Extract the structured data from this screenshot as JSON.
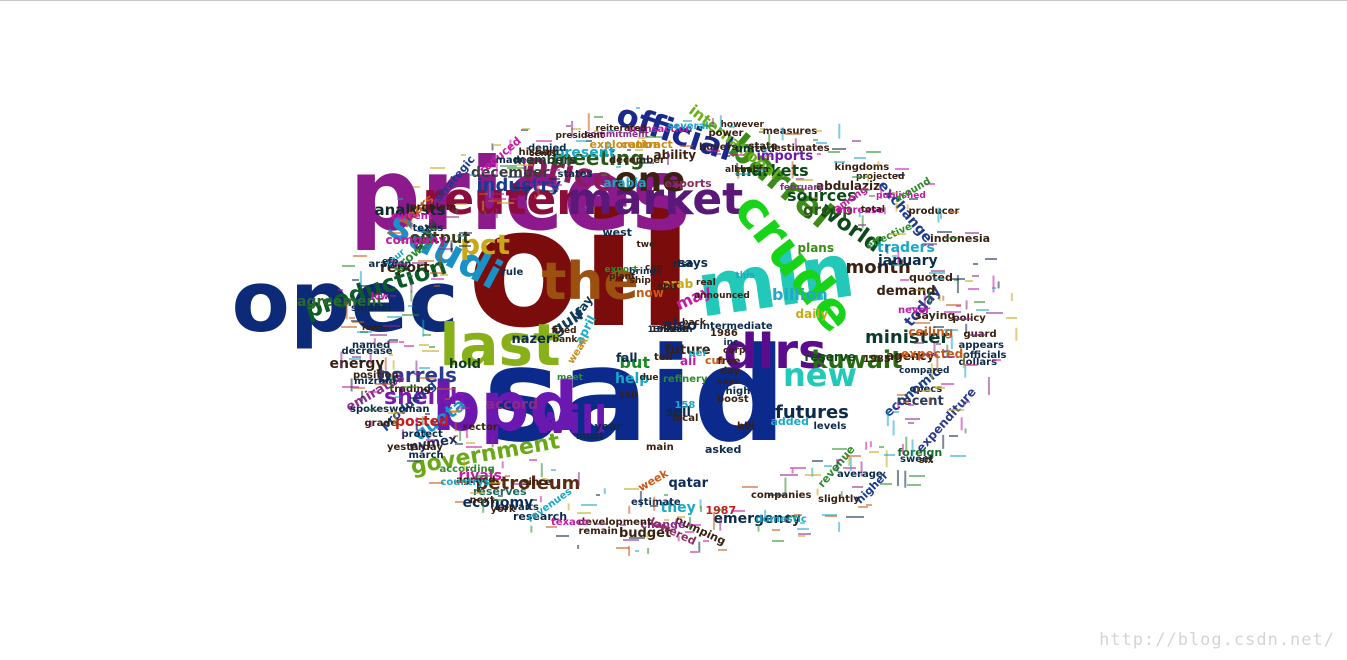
{
  "word_cloud": {
    "words": [
      {
        "text": "oil",
        "color": "#7a0c0c"
      },
      {
        "text": "said",
        "color": "#0c2a8c"
      },
      {
        "text": "prices",
        "color": "#8c1a8c"
      },
      {
        "text": "opec",
        "color": "#0c2a78"
      },
      {
        "text": "mln",
        "color": "#22c8b8"
      },
      {
        "text": "bpd",
        "color": "#6a18b0"
      },
      {
        "text": "last",
        "color": "#88b018"
      },
      {
        "text": "the",
        "color": "#9c5010"
      },
      {
        "text": "reuter",
        "color": "#8c0c3c"
      },
      {
        "text": "market",
        "color": "#5a1878"
      },
      {
        "text": "crude",
        "color": "#18d418"
      },
      {
        "text": "dlrs",
        "color": "#5a0c8c"
      },
      {
        "text": "saudi",
        "color": "#1890c8"
      },
      {
        "text": "one",
        "color": "#3c2010"
      },
      {
        "text": "official",
        "color": "#1a2a8c"
      },
      {
        "text": "barrel",
        "color": "#3c8c18"
      },
      {
        "text": "will",
        "color": "#6a18b0"
      },
      {
        "text": "kuwait",
        "color": "#2a6a10"
      },
      {
        "text": "price",
        "color": "#8c1a5c"
      },
      {
        "text": "production",
        "color": "#0c5a2a"
      },
      {
        "text": "new",
        "color": "#22c8b8"
      },
      {
        "text": "pct",
        "color": "#c8a818"
      },
      {
        "text": "government",
        "color": "#6aa818"
      },
      {
        "text": "sheikh",
        "color": "#7a18b0"
      },
      {
        "text": "barrels",
        "color": "#2a3a8c"
      },
      {
        "text": "minister",
        "color": "#0c3a2a"
      },
      {
        "text": "meeting",
        "color": "#2a5a18"
      },
      {
        "text": "industry",
        "color": "#1a3a8c"
      },
      {
        "text": "world",
        "color": "#0c4a1a"
      },
      {
        "text": "futures",
        "color": "#0c2a4a"
      },
      {
        "text": "petroleum",
        "color": "#5a2a10"
      },
      {
        "text": "month",
        "color": "#3a2010"
      },
      {
        "text": "markets",
        "color": "#0c4a1a"
      },
      {
        "text": "sources",
        "color": "#0c4a1a"
      },
      {
        "text": "billion",
        "color": "#22a8c8"
      },
      {
        "text": "analysts",
        "color": "#0c2a2a"
      },
      {
        "text": "output",
        "color": "#3a3a18"
      },
      {
        "text": "quota",
        "color": "#1890c8"
      },
      {
        "text": "accord",
        "color": "#8c2a8c"
      },
      {
        "text": "today",
        "color": "#2a3a8c"
      },
      {
        "text": "economic",
        "color": "#1a3a8c"
      },
      {
        "text": "group",
        "color": "#2a5a18"
      },
      {
        "text": "agreement",
        "color": "#2a6a2a"
      },
      {
        "text": "december",
        "color": "#3a3a3a"
      },
      {
        "text": "report",
        "color": "#3a2010"
      },
      {
        "text": "present",
        "color": "#18a8c8"
      },
      {
        "text": "gulf",
        "color": "#0c3a5a"
      },
      {
        "text": "may",
        "color": "#c818a8"
      },
      {
        "text": "january",
        "color": "#0c2a4a"
      },
      {
        "text": "demand",
        "color": "#3a2010"
      },
      {
        "text": "energy",
        "color": "#3a2010"
      },
      {
        "text": "posted",
        "color": "#c81818"
      },
      {
        "text": "nymex",
        "color": "#1a2a5a"
      },
      {
        "text": "economy",
        "color": "#0c2a5a"
      },
      {
        "text": "they",
        "color": "#18a8c8"
      },
      {
        "text": "budget",
        "color": "#3a2010"
      },
      {
        "text": "hold",
        "color": "#0c3a1a"
      },
      {
        "text": "help",
        "color": "#18a8c8"
      },
      {
        "text": "but",
        "color": "#1a8c2a"
      },
      {
        "text": "also",
        "color": "#0c2a5a"
      },
      {
        "text": "exchange",
        "color": "#1a3a8c"
      },
      {
        "text": "international",
        "color": "#6ab018"
      },
      {
        "text": "nazer",
        "color": "#0c2a4a"
      },
      {
        "text": "traders",
        "color": "#18a8c8"
      },
      {
        "text": "sell",
        "color": "#0c2a4a"
      },
      {
        "text": "recent",
        "color": "#2a3a5a"
      },
      {
        "text": "emergency",
        "color": "#0c2a4a"
      },
      {
        "text": "years",
        "color": "#c85a18"
      },
      {
        "text": "emirates",
        "color": "#8c2a8c"
      },
      {
        "text": "riyals",
        "color": "#c818a8"
      },
      {
        "text": "reserve",
        "color": "#0c4a1a"
      },
      {
        "text": "expenditure",
        "color": "#2a3a8c"
      },
      {
        "text": "ceiling",
        "color": "#c85a18"
      },
      {
        "text": "agency",
        "color": "#3a2010"
      },
      {
        "text": "expected",
        "color": "#c85a18"
      },
      {
        "text": "imports",
        "color": "#6a18b0"
      },
      {
        "text": "members",
        "color": "#1a3a2a"
      },
      {
        "text": "research",
        "color": "#0c2a4a"
      },
      {
        "text": "plans",
        "color": "#3a8c18"
      },
      {
        "text": "abdulaziz",
        "color": "#3a2010"
      },
      {
        "text": "ability",
        "color": "#3a2010"
      },
      {
        "text": "contract",
        "color": "#c88c18"
      },
      {
        "text": "arabia",
        "color": "#18a8c8"
      },
      {
        "text": "saying",
        "color": "#3a2010"
      },
      {
        "text": "quoted",
        "color": "#3a2010"
      },
      {
        "text": "united",
        "color": "#0c2a4a"
      },
      {
        "text": "daily",
        "color": "#c8a818"
      },
      {
        "text": "april",
        "color": "#18a8c8"
      },
      {
        "text": "way",
        "color": "#0c3a5a"
      },
      {
        "text": "west",
        "color": "#0c2a4a"
      },
      {
        "text": "growth",
        "color": "#2a8c2a"
      },
      {
        "text": "study",
        "color": "#3a3a3a"
      },
      {
        "text": "company",
        "color": "#c818a8"
      },
      {
        "text": "producing",
        "color": "#1a3a8c"
      },
      {
        "text": "says",
        "color": "#0c2a4a"
      },
      {
        "text": "arab",
        "color": "#c8a818"
      },
      {
        "text": "now",
        "color": "#c85a18"
      },
      {
        "text": "exports",
        "color": "#8c2a5c"
      },
      {
        "text": "pumping",
        "color": "#3a2010"
      },
      {
        "text": "change",
        "color": "#8c2a8c"
      },
      {
        "text": "lowered",
        "color": "#8c2a5c"
      },
      {
        "text": "qatar",
        "color": "#0c2a5a"
      },
      {
        "text": "week",
        "color": "#c85a18"
      },
      {
        "text": "asked",
        "color": "#0c2a4a"
      },
      {
        "text": "year",
        "color": "#0c2a4a"
      },
      {
        "text": "must",
        "color": "#0c2a4a"
      },
      {
        "text": "since",
        "color": "#3a2010"
      },
      {
        "text": "according",
        "color": "#2a8c2a"
      },
      {
        "text": "reserves",
        "color": "#1a6a5a"
      },
      {
        "text": "protect",
        "color": "#0c2a4a"
      },
      {
        "text": "yesterday",
        "color": "#3a2010"
      },
      {
        "text": "higher",
        "color": "#1a3a8c"
      },
      {
        "text": "fall",
        "color": "#0c2a4a"
      },
      {
        "text": "added",
        "color": "#18a8c8"
      },
      {
        "text": "levels",
        "color": "#0c2a4a"
      },
      {
        "text": "development",
        "color": "#3a2010"
      },
      {
        "text": "texaco",
        "color": "#c818a8"
      },
      {
        "text": "revenues",
        "color": "#18a8c8"
      },
      {
        "text": "exploration",
        "color": "#c88c18"
      },
      {
        "text": "reduced",
        "color": "#c818a8"
      },
      {
        "text": "strategic",
        "color": "#1a3a8c"
      },
      {
        "text": "transaction",
        "color": "#c818a8"
      },
      {
        "text": "power",
        "color": "#3a2010"
      },
      {
        "text": "opecs",
        "color": "#0c2a4a"
      },
      {
        "text": "foreign",
        "color": "#1a6a2a"
      },
      {
        "text": "sweet",
        "color": "#0c2a4a"
      },
      {
        "text": "average",
        "color": "#0c2a4a"
      },
      {
        "text": "slightly",
        "color": "#3a2010"
      },
      {
        "text": "revenue",
        "color": "#2a8c2a"
      },
      {
        "text": "domestic",
        "color": "#18a8c8"
      },
      {
        "text": "indonesia",
        "color": "#3a2010"
      },
      {
        "text": "producer",
        "color": "#3a2010"
      },
      {
        "text": "dollars",
        "color": "#0c2a4a"
      },
      {
        "text": "officials",
        "color": "#0c2a4a"
      },
      {
        "text": "guard",
        "color": "#3a2010"
      },
      {
        "text": "texas",
        "color": "#0c2a4a"
      },
      {
        "text": "current",
        "color": "#c818a8"
      },
      {
        "text": "problem",
        "color": "#3a2010"
      },
      {
        "text": "sector",
        "color": "#3a2010"
      },
      {
        "text": "states",
        "color": "#0c2a4a"
      },
      {
        "text": "december",
        "color": "#3a2010"
      },
      {
        "text": "february",
        "color": "#8c2a8c"
      },
      {
        "text": "companies",
        "color": "#3a2010"
      },
      {
        "text": "measures",
        "color": "#3a2010"
      },
      {
        "text": "kingdoms",
        "color": "#3a2010"
      },
      {
        "text": "increase",
        "color": "#c818a8"
      },
      {
        "text": "estimate",
        "color": "#0c2a4a"
      },
      {
        "text": "remain",
        "color": "#3a2010"
      },
      {
        "text": "kuwaits",
        "color": "#0c2a4a"
      },
      {
        "text": "agreed",
        "color": "#3a2010"
      },
      {
        "text": "march",
        "color": "#0c2a4a"
      },
      {
        "text": "arabian",
        "color": "#0c2a4a"
      },
      {
        "text": "smaller",
        "color": "#0c2a4a"
      },
      {
        "text": "named",
        "color": "#0c2a4a"
      },
      {
        "text": "decrease",
        "color": "#0c2a4a"
      },
      {
        "text": "position",
        "color": "#3a2010"
      },
      {
        "text": "spokeswoman",
        "color": "#0c2a4a"
      },
      {
        "text": "made",
        "color": "#0c2a4a"
      },
      {
        "text": "denied",
        "color": "#0c2a4a"
      },
      {
        "text": "reiterated",
        "color": "#3a2010"
      },
      {
        "text": "commitment",
        "color": "#8c2a8c"
      },
      {
        "text": "president",
        "color": "#3a2010"
      },
      {
        "text": "hisham",
        "color": "#3a2010"
      },
      {
        "text": "several",
        "color": "#18a8c8"
      },
      {
        "text": "however",
        "color": "#3a2010"
      },
      {
        "text": "state",
        "color": "#3a2010"
      },
      {
        "text": "buyers",
        "color": "#3a2010"
      },
      {
        "text": "alkhalifa",
        "color": "#3a2010"
      },
      {
        "text": "estimates",
        "color": "#3a2010"
      },
      {
        "text": "projected",
        "color": "#3a2010"
      },
      {
        "text": "published",
        "color": "#c818a8"
      },
      {
        "text": "never",
        "color": "#c818a8"
      },
      {
        "text": "policy",
        "color": "#3a2010"
      },
      {
        "text": "compared",
        "color": "#0c2a4a"
      },
      {
        "text": "effective",
        "color": "#2a8c2a"
      },
      {
        "text": "total",
        "color": "#3a2010"
      },
      {
        "text": "among",
        "color": "#c818a8"
      },
      {
        "text": "around",
        "color": "#2a8c2a"
      },
      {
        "text": "real",
        "color": "#3a2010"
      },
      {
        "text": "cut",
        "color": "#c85a18"
      },
      {
        "text": "rise",
        "color": "#0c2a4a"
      },
      {
        "text": "free",
        "color": "#3a2010"
      },
      {
        "text": "inc",
        "color": "#0c2a4a"
      },
      {
        "text": "corp",
        "color": "#3a2010"
      },
      {
        "text": "day",
        "color": "#3a2010"
      },
      {
        "text": "boost",
        "color": "#3a2010"
      },
      {
        "text": "high",
        "color": "#0c2a4a"
      },
      {
        "text": "local",
        "color": "#3a2010"
      },
      {
        "text": "main",
        "color": "#3a2010"
      },
      {
        "text": "next",
        "color": "#3a2010"
      },
      {
        "text": "york",
        "color": "#3a2010"
      },
      {
        "text": "trading",
        "color": "#3a2010"
      },
      {
        "text": "mizrahi",
        "color": "#0c2a4a"
      },
      {
        "text": "countrys",
        "color": "#18a8c8"
      },
      {
        "text": "grade",
        "color": "#3a2010"
      },
      {
        "text": "appears",
        "color": "#0c2a4a"
      },
      {
        "text": "future",
        "color": "#3a2010"
      },
      {
        "text": "refinery",
        "color": "#2a8c2a"
      },
      {
        "text": "ali",
        "color": "#c818a8"
      },
      {
        "text": "tell",
        "color": "#3a2010"
      },
      {
        "text": "158",
        "color": "#18a8c8"
      },
      {
        "text": "150",
        "color": "#3a2010"
      },
      {
        "text": "bbl",
        "color": "#3a2010"
      },
      {
        "text": "1986",
        "color": "#3a2010"
      },
      {
        "text": "1985",
        "color": "#3a2010"
      },
      {
        "text": "1987",
        "color": "#c81818"
      },
      {
        "text": "export",
        "color": "#2a8c2a"
      },
      {
        "text": "plant",
        "color": "#3a2010"
      },
      {
        "text": "meet",
        "color": "#2a8c2a"
      },
      {
        "text": "weak",
        "color": "#c88c18"
      },
      {
        "text": "fixed",
        "color": "#3a2010"
      },
      {
        "text": "bank",
        "color": "#3a2010"
      },
      {
        "text": "two",
        "color": "#3a2010"
      },
      {
        "text": "four",
        "color": "#18a8c8"
      },
      {
        "text": "rule",
        "color": "#0c2a4a"
      },
      {
        "text": "efp",
        "color": "#0c2a4a"
      },
      {
        "text": "lower",
        "color": "#3a2010"
      },
      {
        "text": "ship",
        "color": "#3a2010"
      },
      {
        "text": "brings",
        "color": "#0c2a4a"
      },
      {
        "text": "intermediate",
        "color": "#0c2a4a"
      },
      {
        "text": "announced",
        "color": "#3a2010"
      },
      {
        "text": "due",
        "color": "#3a2010"
      },
      {
        "text": "says",
        "color": "#3a2010"
      },
      {
        "text": "per",
        "color": "#18a8c8"
      },
      {
        "text": "spa",
        "color": "#3a2010"
      },
      {
        "text": "back",
        "color": "#3a2010"
      },
      {
        "text": "can",
        "color": "#3a2010"
      },
      {
        "text": "this",
        "color": "#18a8c8"
      },
      {
        "text": "low",
        "color": "#c818a8"
      },
      {
        "text": "six",
        "color": "#3a2010"
      },
      {
        "text": "cents",
        "color": "#3a2010"
      },
      {
        "text": "first",
        "color": "#0c2a4a"
      },
      {
        "text": "198586",
        "color": "#3a2010"
      },
      {
        "text": "198788",
        "color": "#3a2010"
      },
      {
        "text": "13nation",
        "color": "#0c2a4a"
      }
    ]
  },
  "watermark": "http://blog.csdn.net/"
}
